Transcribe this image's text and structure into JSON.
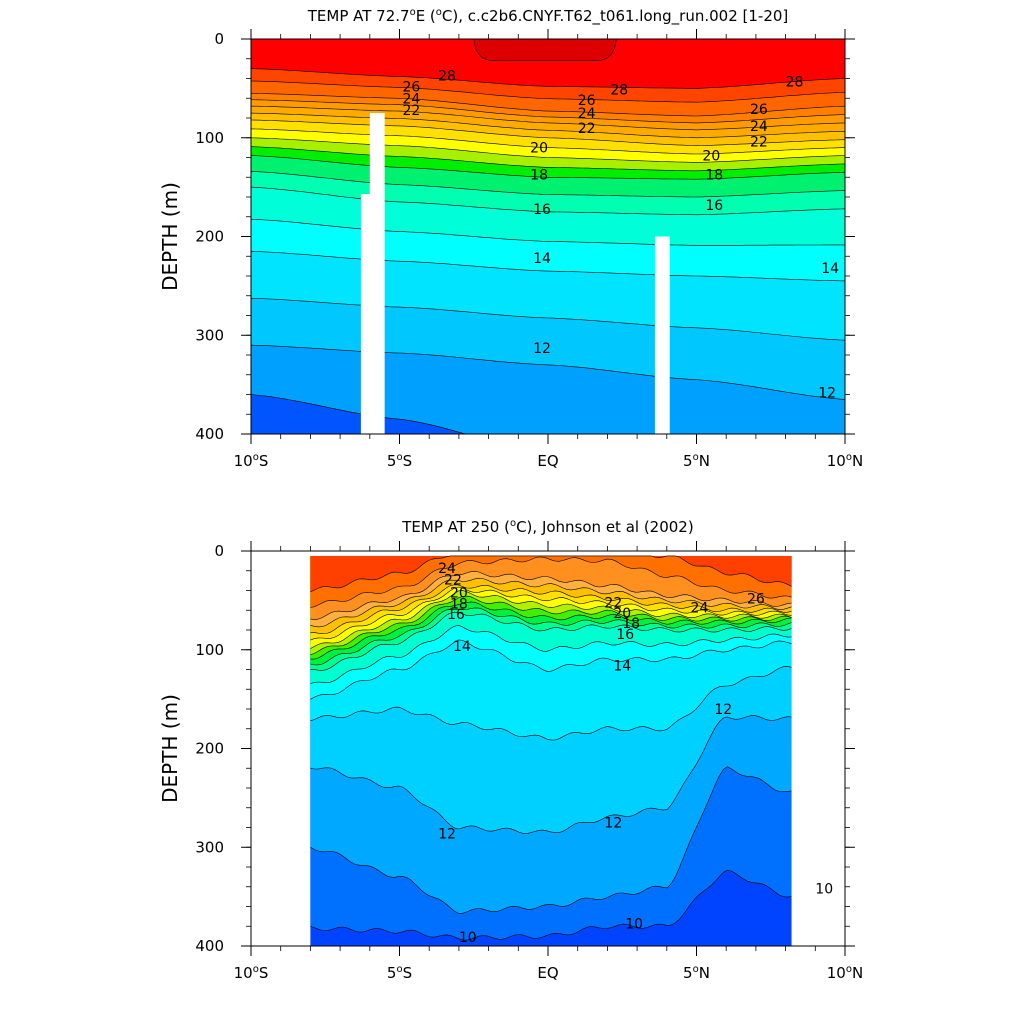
{
  "chart_data": [
    {
      "type": "contour",
      "title": "TEMP AT  72.7°E (°C), c.c2b6.CNYF.T62_t061.long_run.002 [1-20]",
      "ylabel": "DEPTH (m)",
      "xlabel": "",
      "xlim": [
        -10,
        10
      ],
      "ylim": [
        400,
        0
      ],
      "y_reversed": true,
      "x_ticks": [
        {
          "value": -10,
          "label": "10°S"
        },
        {
          "value": -5,
          "label": "5°S"
        },
        {
          "value": 0,
          "label": "EQ"
        },
        {
          "value": 5,
          "label": "5°N"
        },
        {
          "value": 10,
          "label": "10°N"
        }
      ],
      "y_ticks": [
        0,
        100,
        200,
        300,
        400
      ],
      "data_extent_x": [
        -10,
        10
      ],
      "contour_interval": 1,
      "colors": {
        "10": "#0055ff",
        "11": "#00a0ff",
        "12": "#00c8ff",
        "13": "#00e4ff",
        "14": "#00ffff",
        "15": "#00ffd8",
        "16": "#00ffb0",
        "17": "#00f070",
        "18": "#00ee00",
        "19": "#a8f000",
        "20": "#ffff00",
        "21": "#ffe000",
        "22": "#ffc000",
        "23": "#ffaa00",
        "24": "#ff9a00",
        "25": "#ff8000",
        "26": "#ff6600",
        "27": "#ff4400",
        "28": "#ff0000",
        "29": "#dd0000"
      },
      "profiles": [
        {
          "x": -10,
          "levels": [
            {
              "v": 28,
              "d": 30
            },
            {
              "v": 26,
              "d": 55
            },
            {
              "v": 24,
              "d": 68
            },
            {
              "v": 22,
              "d": 82
            },
            {
              "v": 20,
              "d": 100
            },
            {
              "v": 18,
              "d": 118
            },
            {
              "v": 16,
              "d": 150
            },
            {
              "v": 14,
              "d": 215
            },
            {
              "v": 12,
              "d": 310
            },
            {
              "v": 11,
              "d": 360
            },
            {
              "v": 10,
              "d": 500
            }
          ]
        },
        {
          "x": -5,
          "levels": [
            {
              "v": 28,
              "d": 38
            },
            {
              "v": 26,
              "d": 60
            },
            {
              "v": 24,
              "d": 73
            },
            {
              "v": 22,
              "d": 88
            },
            {
              "v": 20,
              "d": 108
            },
            {
              "v": 18,
              "d": 130
            },
            {
              "v": 16,
              "d": 165
            },
            {
              "v": 14,
              "d": 225
            },
            {
              "v": 12,
              "d": 318
            },
            {
              "v": 11,
              "d": 385
            },
            {
              "v": 10,
              "d": 500
            }
          ]
        },
        {
          "x": 0,
          "levels": [
            {
              "v": 28,
              "d": 48
            },
            {
              "v": 26,
              "d": 73
            },
            {
              "v": 24,
              "d": 85
            },
            {
              "v": 22,
              "d": 100
            },
            {
              "v": 20,
              "d": 120
            },
            {
              "v": 18,
              "d": 140
            },
            {
              "v": 16,
              "d": 175
            },
            {
              "v": 14,
              "d": 235
            },
            {
              "v": 12,
              "d": 330
            },
            {
              "v": 11,
              "d": 420
            },
            {
              "v": 10,
              "d": 500
            }
          ]
        },
        {
          "x": 5,
          "levels": [
            {
              "v": 28,
              "d": 50
            },
            {
              "v": 26,
              "d": 78
            },
            {
              "v": 24,
              "d": 92
            },
            {
              "v": 22,
              "d": 108
            },
            {
              "v": 20,
              "d": 125
            },
            {
              "v": 18,
              "d": 142
            },
            {
              "v": 16,
              "d": 178
            },
            {
              "v": 14,
              "d": 240
            },
            {
              "v": 12,
              "d": 345
            },
            {
              "v": 11,
              "d": 430
            },
            {
              "v": 10,
              "d": 500
            }
          ]
        },
        {
          "x": 10,
          "levels": [
            {
              "v": 28,
              "d": 40
            },
            {
              "v": 26,
              "d": 68
            },
            {
              "v": 24,
              "d": 85
            },
            {
              "v": 22,
              "d": 102
            },
            {
              "v": 20,
              "d": 118
            },
            {
              "v": 18,
              "d": 135
            },
            {
              "v": 16,
              "d": 172
            },
            {
              "v": 14,
              "d": 245
            },
            {
              "v": 12,
              "d": 365
            },
            {
              "v": 11,
              "d": 440
            },
            {
              "v": 10,
              "d": 500
            }
          ]
        }
      ],
      "max_region": {
        "x": [
          -2.5,
          2.3
        ],
        "d": [
          0,
          22
        ],
        "color": "#dd0000"
      },
      "masks": [
        {
          "x0": -6.3,
          "x1": -5.5,
          "d0": 157,
          "d1": 400
        },
        {
          "x0": -6.0,
          "x1": -5.5,
          "d0": 75,
          "d1": 157
        },
        {
          "x0": 3.6,
          "x1": 4.1,
          "d0": 200,
          "d1": 400
        }
      ],
      "contour_labels": [
        {
          "text": "28",
          "x": -3.4,
          "d": 37
        },
        {
          "text": "28",
          "x": 2.4,
          "d": 51
        },
        {
          "text": "28",
          "x": 8.3,
          "d": 43
        },
        {
          "text": "26",
          "x": -4.6,
          "d": 48
        },
        {
          "text": "24",
          "x": -4.6,
          "d": 60
        },
        {
          "text": "22",
          "x": -4.6,
          "d": 72
        },
        {
          "text": "26",
          "x": 1.3,
          "d": 62
        },
        {
          "text": "24",
          "x": 1.3,
          "d": 75
        },
        {
          "text": "22",
          "x": 1.3,
          "d": 90
        },
        {
          "text": "26",
          "x": 7.1,
          "d": 71
        },
        {
          "text": "24",
          "x": 7.1,
          "d": 88
        },
        {
          "text": "22",
          "x": 7.1,
          "d": 104
        },
        {
          "text": "20",
          "x": -0.3,
          "d": 110
        },
        {
          "text": "20",
          "x": 5.5,
          "d": 118
        },
        {
          "text": "18",
          "x": -0.3,
          "d": 137
        },
        {
          "text": "18",
          "x": 5.6,
          "d": 137
        },
        {
          "text": "16",
          "x": -0.2,
          "d": 172
        },
        {
          "text": "16",
          "x": 5.6,
          "d": 168
        },
        {
          "text": "14",
          "x": -0.2,
          "d": 222
        },
        {
          "text": "14",
          "x": 9.5,
          "d": 232
        },
        {
          "text": "12",
          "x": -0.2,
          "d": 313
        },
        {
          "text": "12",
          "x": 9.4,
          "d": 358
        }
      ]
    },
    {
      "type": "contour",
      "title": "TEMP AT 250 (°C), Johnson et al (2002)",
      "ylabel": "DEPTH (m)",
      "xlabel": "",
      "xlim": [
        -10,
        10
      ],
      "ylim": [
        400,
        0
      ],
      "y_reversed": true,
      "x_ticks": [
        {
          "value": -10,
          "label": "10°S"
        },
        {
          "value": -5,
          "label": "5°S"
        },
        {
          "value": 0,
          "label": "EQ"
        },
        {
          "value": 5,
          "label": "5°N"
        },
        {
          "value": 10,
          "label": "10°N"
        }
      ],
      "y_ticks": [
        0,
        100,
        200,
        300,
        400
      ],
      "data_extent_x": [
        -8,
        8.2
      ],
      "data_extent_d": [
        5,
        400
      ],
      "contour_interval": 1,
      "colors": {
        "9": "#0044ff",
        "10": "#0070ff",
        "11": "#00a8ff",
        "12": "#00d0ff",
        "13": "#00e8ff",
        "14": "#00ffff",
        "15": "#00ffd0",
        "16": "#00ff90",
        "17": "#00f040",
        "18": "#40f000",
        "19": "#b0f000",
        "20": "#ffff00",
        "21": "#ffe000",
        "22": "#ffc000",
        "23": "#ffb040",
        "24": "#ff9020",
        "25": "#ff7000",
        "26": "#ff4000"
      },
      "profiles": [
        {
          "x": -8,
          "levels": [
            {
              "v": 25,
              "d": 55
            },
            {
              "v": 24,
              "d": 68
            },
            {
              "v": 22,
              "d": 85
            },
            {
              "v": 20,
              "d": 98
            },
            {
              "v": 18,
              "d": 108
            },
            {
              "v": 16,
              "d": 122
            },
            {
              "v": 14,
              "d": 150
            },
            {
              "v": 13,
              "d": 170
            },
            {
              "v": 12,
              "d": 218
            },
            {
              "v": 11,
              "d": 300
            },
            {
              "v": 10,
              "d": 382
            }
          ]
        },
        {
          "x": -5,
          "levels": [
            {
              "v": 25,
              "d": 38
            },
            {
              "v": 24,
              "d": 48
            },
            {
              "v": 22,
              "d": 58
            },
            {
              "v": 20,
              "d": 70
            },
            {
              "v": 18,
              "d": 80
            },
            {
              "v": 16,
              "d": 92
            },
            {
              "v": 14,
              "d": 120
            },
            {
              "v": 13,
              "d": 160
            },
            {
              "v": 12,
              "d": 240
            },
            {
              "v": 11,
              "d": 330
            },
            {
              "v": 10,
              "d": 385
            }
          ]
        },
        {
          "x": -3,
          "levels": [
            {
              "v": 25,
              "d": 12
            },
            {
              "v": 24,
              "d": 22
            },
            {
              "v": 22,
              "d": 35
            },
            {
              "v": 20,
              "d": 42
            },
            {
              "v": 18,
              "d": 52
            },
            {
              "v": 16,
              "d": 62
            },
            {
              "v": 14,
              "d": 92
            },
            {
              "v": 13,
              "d": 175
            },
            {
              "v": 12,
              "d": 280
            },
            {
              "v": 11,
              "d": 365
            },
            {
              "v": 10,
              "d": 392
            }
          ]
        },
        {
          "x": 0,
          "levels": [
            {
              "v": 25,
              "d": 8
            },
            {
              "v": 24,
              "d": 28
            },
            {
              "v": 22,
              "d": 42
            },
            {
              "v": 20,
              "d": 55
            },
            {
              "v": 18,
              "d": 68
            },
            {
              "v": 16,
              "d": 80
            },
            {
              "v": 14,
              "d": 120
            },
            {
              "v": 13,
              "d": 190
            },
            {
              "v": 12,
              "d": 285
            },
            {
              "v": 11,
              "d": 360
            },
            {
              "v": 10,
              "d": 390
            }
          ]
        },
        {
          "x": 2,
          "levels": [
            {
              "v": 25,
              "d": 10
            },
            {
              "v": 24,
              "d": 35
            },
            {
              "v": 22,
              "d": 48
            },
            {
              "v": 20,
              "d": 58
            },
            {
              "v": 18,
              "d": 66
            },
            {
              "v": 16,
              "d": 76
            },
            {
              "v": 14,
              "d": 110
            },
            {
              "v": 13,
              "d": 180
            },
            {
              "v": 12,
              "d": 270
            },
            {
              "v": 11,
              "d": 350
            },
            {
              "v": 10,
              "d": 380
            }
          ]
        },
        {
          "x": 4,
          "levels": [
            {
              "v": 26,
              "d": 5
            },
            {
              "v": 25,
              "d": 25
            },
            {
              "v": 24,
              "d": 45
            },
            {
              "v": 22,
              "d": 55
            },
            {
              "v": 20,
              "d": 65
            },
            {
              "v": 18,
              "d": 72
            },
            {
              "v": 16,
              "d": 80
            },
            {
              "v": 14,
              "d": 110
            },
            {
              "v": 13,
              "d": 180
            },
            {
              "v": 12,
              "d": 260
            },
            {
              "v": 11,
              "d": 340
            },
            {
              "v": 10,
              "d": 380
            }
          ]
        },
        {
          "x": 6,
          "levels": [
            {
              "v": 26,
              "d": 22
            },
            {
              "v": 25,
              "d": 40
            },
            {
              "v": 24,
              "d": 50
            },
            {
              "v": 22,
              "d": 60
            },
            {
              "v": 20,
              "d": 66
            },
            {
              "v": 18,
              "d": 72
            },
            {
              "v": 16,
              "d": 80
            },
            {
              "v": 14,
              "d": 100
            },
            {
              "v": 13,
              "d": 135
            },
            {
              "v": 12,
              "d": 168
            },
            {
              "v": 11,
              "d": 220
            },
            {
              "v": 10,
              "d": 325
            }
          ]
        },
        {
          "x": 8.2,
          "levels": [
            {
              "v": 26,
              "d": 35
            },
            {
              "v": 25,
              "d": 48
            },
            {
              "v": 24,
              "d": 55
            },
            {
              "v": 22,
              "d": 60
            },
            {
              "v": 20,
              "d": 66
            },
            {
              "v": 18,
              "d": 70
            },
            {
              "v": 16,
              "d": 78
            },
            {
              "v": 14,
              "d": 92
            },
            {
              "v": 13,
              "d": 118
            },
            {
              "v": 12,
              "d": 170
            },
            {
              "v": 11,
              "d": 245
            },
            {
              "v": 10,
              "d": 350
            }
          ]
        }
      ],
      "contour_labels": [
        {
          "text": "24",
          "x": -3.4,
          "d": 17
        },
        {
          "text": "22",
          "x": -3.2,
          "d": 29
        },
        {
          "text": "20",
          "x": -3.0,
          "d": 42
        },
        {
          "text": "18",
          "x": -3.0,
          "d": 53
        },
        {
          "text": "16",
          "x": -3.1,
          "d": 64
        },
        {
          "text": "14",
          "x": -2.9,
          "d": 96
        },
        {
          "text": "22",
          "x": 2.2,
          "d": 52
        },
        {
          "text": "20",
          "x": 2.5,
          "d": 63
        },
        {
          "text": "18",
          "x": 2.8,
          "d": 73
        },
        {
          "text": "16",
          "x": 2.6,
          "d": 84
        },
        {
          "text": "14",
          "x": 2.5,
          "d": 116
        },
        {
          "text": "24",
          "x": 5.1,
          "d": 57
        },
        {
          "text": "26",
          "x": 7.0,
          "d": 48
        },
        {
          "text": "12",
          "x": 5.9,
          "d": 160
        },
        {
          "text": "12",
          "x": -3.4,
          "d": 286
        },
        {
          "text": "12",
          "x": 2.2,
          "d": 275
        },
        {
          "text": "10",
          "x": -2.7,
          "d": 391
        },
        {
          "text": "10",
          "x": 2.9,
          "d": 377
        },
        {
          "text": "10",
          "x": 9.3,
          "d": 342
        }
      ]
    }
  ]
}
